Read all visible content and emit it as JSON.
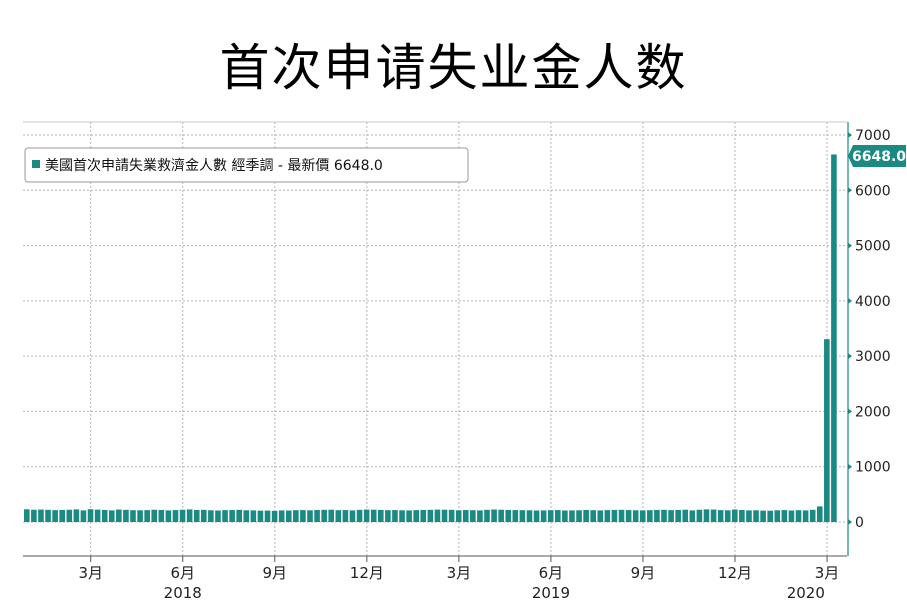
{
  "title": "首次申请失业金人数",
  "chart_data": {
    "type": "bar",
    "legend": {
      "label": "美國首次申請失業救濟金人數 經季調 - 最新價 6648.0",
      "color": "#1a8a83",
      "placement": "top-left"
    },
    "latest_value_label": "6648.0",
    "color": "#1a8a83",
    "ylim": [
      -600,
      7200
    ],
    "yticks": [
      {
        "value": 0,
        "label": "0"
      },
      {
        "value": 1000,
        "label": "1000"
      },
      {
        "value": 2000,
        "label": "2000"
      },
      {
        "value": 3000,
        "label": "3000"
      },
      {
        "value": 4000,
        "label": "4000"
      },
      {
        "value": 5000,
        "label": "5000"
      },
      {
        "value": 6000,
        "label": "6000"
      },
      {
        "value": 7000,
        "label": "7000"
      }
    ],
    "xticks": [
      {
        "week": 9,
        "label": "3月"
      },
      {
        "week": 22,
        "label": "6月"
      },
      {
        "week": 35,
        "label": "9月"
      },
      {
        "week": 48,
        "label": "12月"
      },
      {
        "week": 61,
        "label": "3月"
      },
      {
        "week": 74,
        "label": "6月"
      },
      {
        "week": 87,
        "label": "9月"
      },
      {
        "week": 100,
        "label": "12月"
      },
      {
        "week": 113,
        "label": "3月"
      }
    ],
    "years": [
      {
        "week": 22,
        "label": "2018"
      },
      {
        "week": 74,
        "label": "2019"
      },
      {
        "week": 110,
        "label": "2020"
      }
    ],
    "grid": true,
    "values": [
      230,
      222,
      225,
      220,
      215,
      218,
      222,
      228,
      210,
      232,
      224,
      218,
      210,
      225,
      220,
      214,
      212,
      215,
      222,
      218,
      210,
      216,
      222,
      228,
      218,
      220,
      212,
      208,
      215,
      216,
      220,
      212,
      210,
      205,
      206,
      202,
      210,
      208,
      214,
      216,
      212,
      218,
      220,
      222,
      214,
      216,
      210,
      220,
      225,
      222,
      218,
      214,
      216,
      212,
      210,
      215,
      218,
      220,
      224,
      222,
      220,
      212,
      216,
      214,
      210,
      220,
      226,
      222,
      218,
      216,
      214,
      212,
      208,
      210,
      214,
      216,
      208,
      210,
      212,
      218,
      214,
      210,
      215,
      218,
      220,
      216,
      212,
      210,
      214,
      218,
      220,
      215,
      218,
      222,
      210,
      222,
      228,
      225,
      215,
      212,
      226,
      218,
      210,
      212,
      206,
      204,
      212,
      216,
      208,
      214,
      210,
      220,
      282,
      3307,
      6648
    ]
  }
}
